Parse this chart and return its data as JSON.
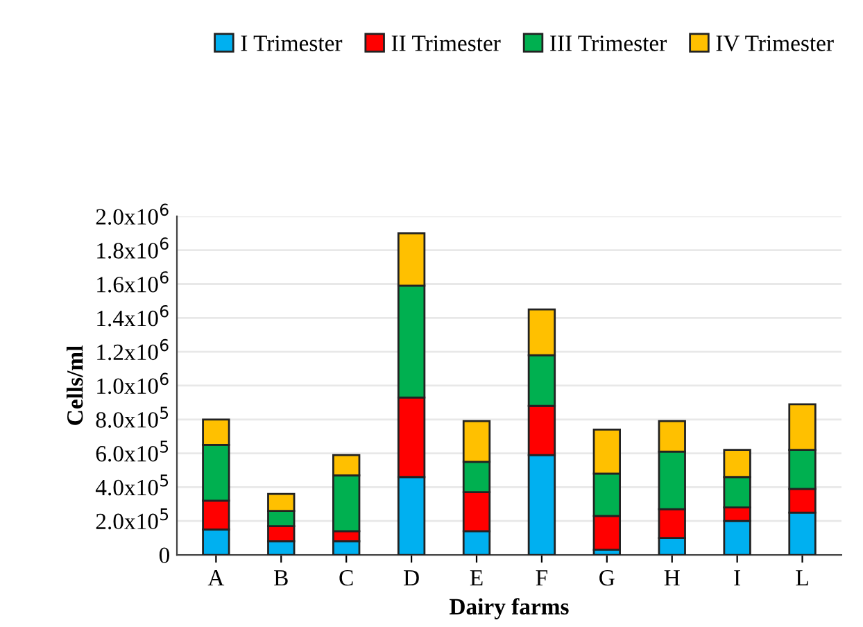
{
  "chart_data": {
    "type": "bar",
    "stacked": true,
    "xlabel": "Dairy farms",
    "ylabel": "Cells/ml",
    "categories": [
      "A",
      "B",
      "C",
      "D",
      "E",
      "F",
      "G",
      "H",
      "I",
      "L"
    ],
    "series": [
      {
        "name": "I Trimester",
        "color": "#00b0f0",
        "values": [
          150000,
          80000,
          80000,
          460000,
          140000,
          590000,
          30000,
          100000,
          200000,
          250000
        ]
      },
      {
        "name": "II Trimester",
        "color": "#ff0000",
        "values": [
          170000,
          90000,
          60000,
          470000,
          230000,
          290000,
          200000,
          170000,
          80000,
          140000
        ]
      },
      {
        "name": "III Trimester",
        "color": "#00b050",
        "values": [
          330000,
          90000,
          330000,
          660000,
          180000,
          300000,
          250000,
          340000,
          180000,
          230000
        ]
      },
      {
        "name": "IV Trimester",
        "color": "#ffc000",
        "values": [
          150000,
          100000,
          120000,
          310000,
          240000,
          270000,
          260000,
          180000,
          160000,
          270000
        ]
      }
    ],
    "ylim": [
      0,
      2000000
    ],
    "yticks": [
      0,
      {
        "value": 200000,
        "label": "2.0x10$^{5}$"
      },
      {
        "value": 400000,
        "label": "4.0x10$^{5}$"
      },
      {
        "value": 600000,
        "label": "6.0x10$^{5}$"
      },
      {
        "value": 800000,
        "label": "8.0x10$^{5}$"
      },
      {
        "value": 1000000,
        "label": "1.0x10$^{6}$"
      },
      {
        "value": 1200000,
        "label": "1.2x10$^{6}$"
      },
      {
        "value": 1400000,
        "label": "1.4x10$^{6}$"
      },
      {
        "value": 1600000,
        "label": "1.6x10$^{6}$"
      },
      {
        "value": 1800000,
        "label": "1.8x10$^{6}$"
      },
      {
        "value": 2000000,
        "label": "2.0x10$^{6}$"
      }
    ],
    "grid": "y",
    "legend": "top right"
  }
}
